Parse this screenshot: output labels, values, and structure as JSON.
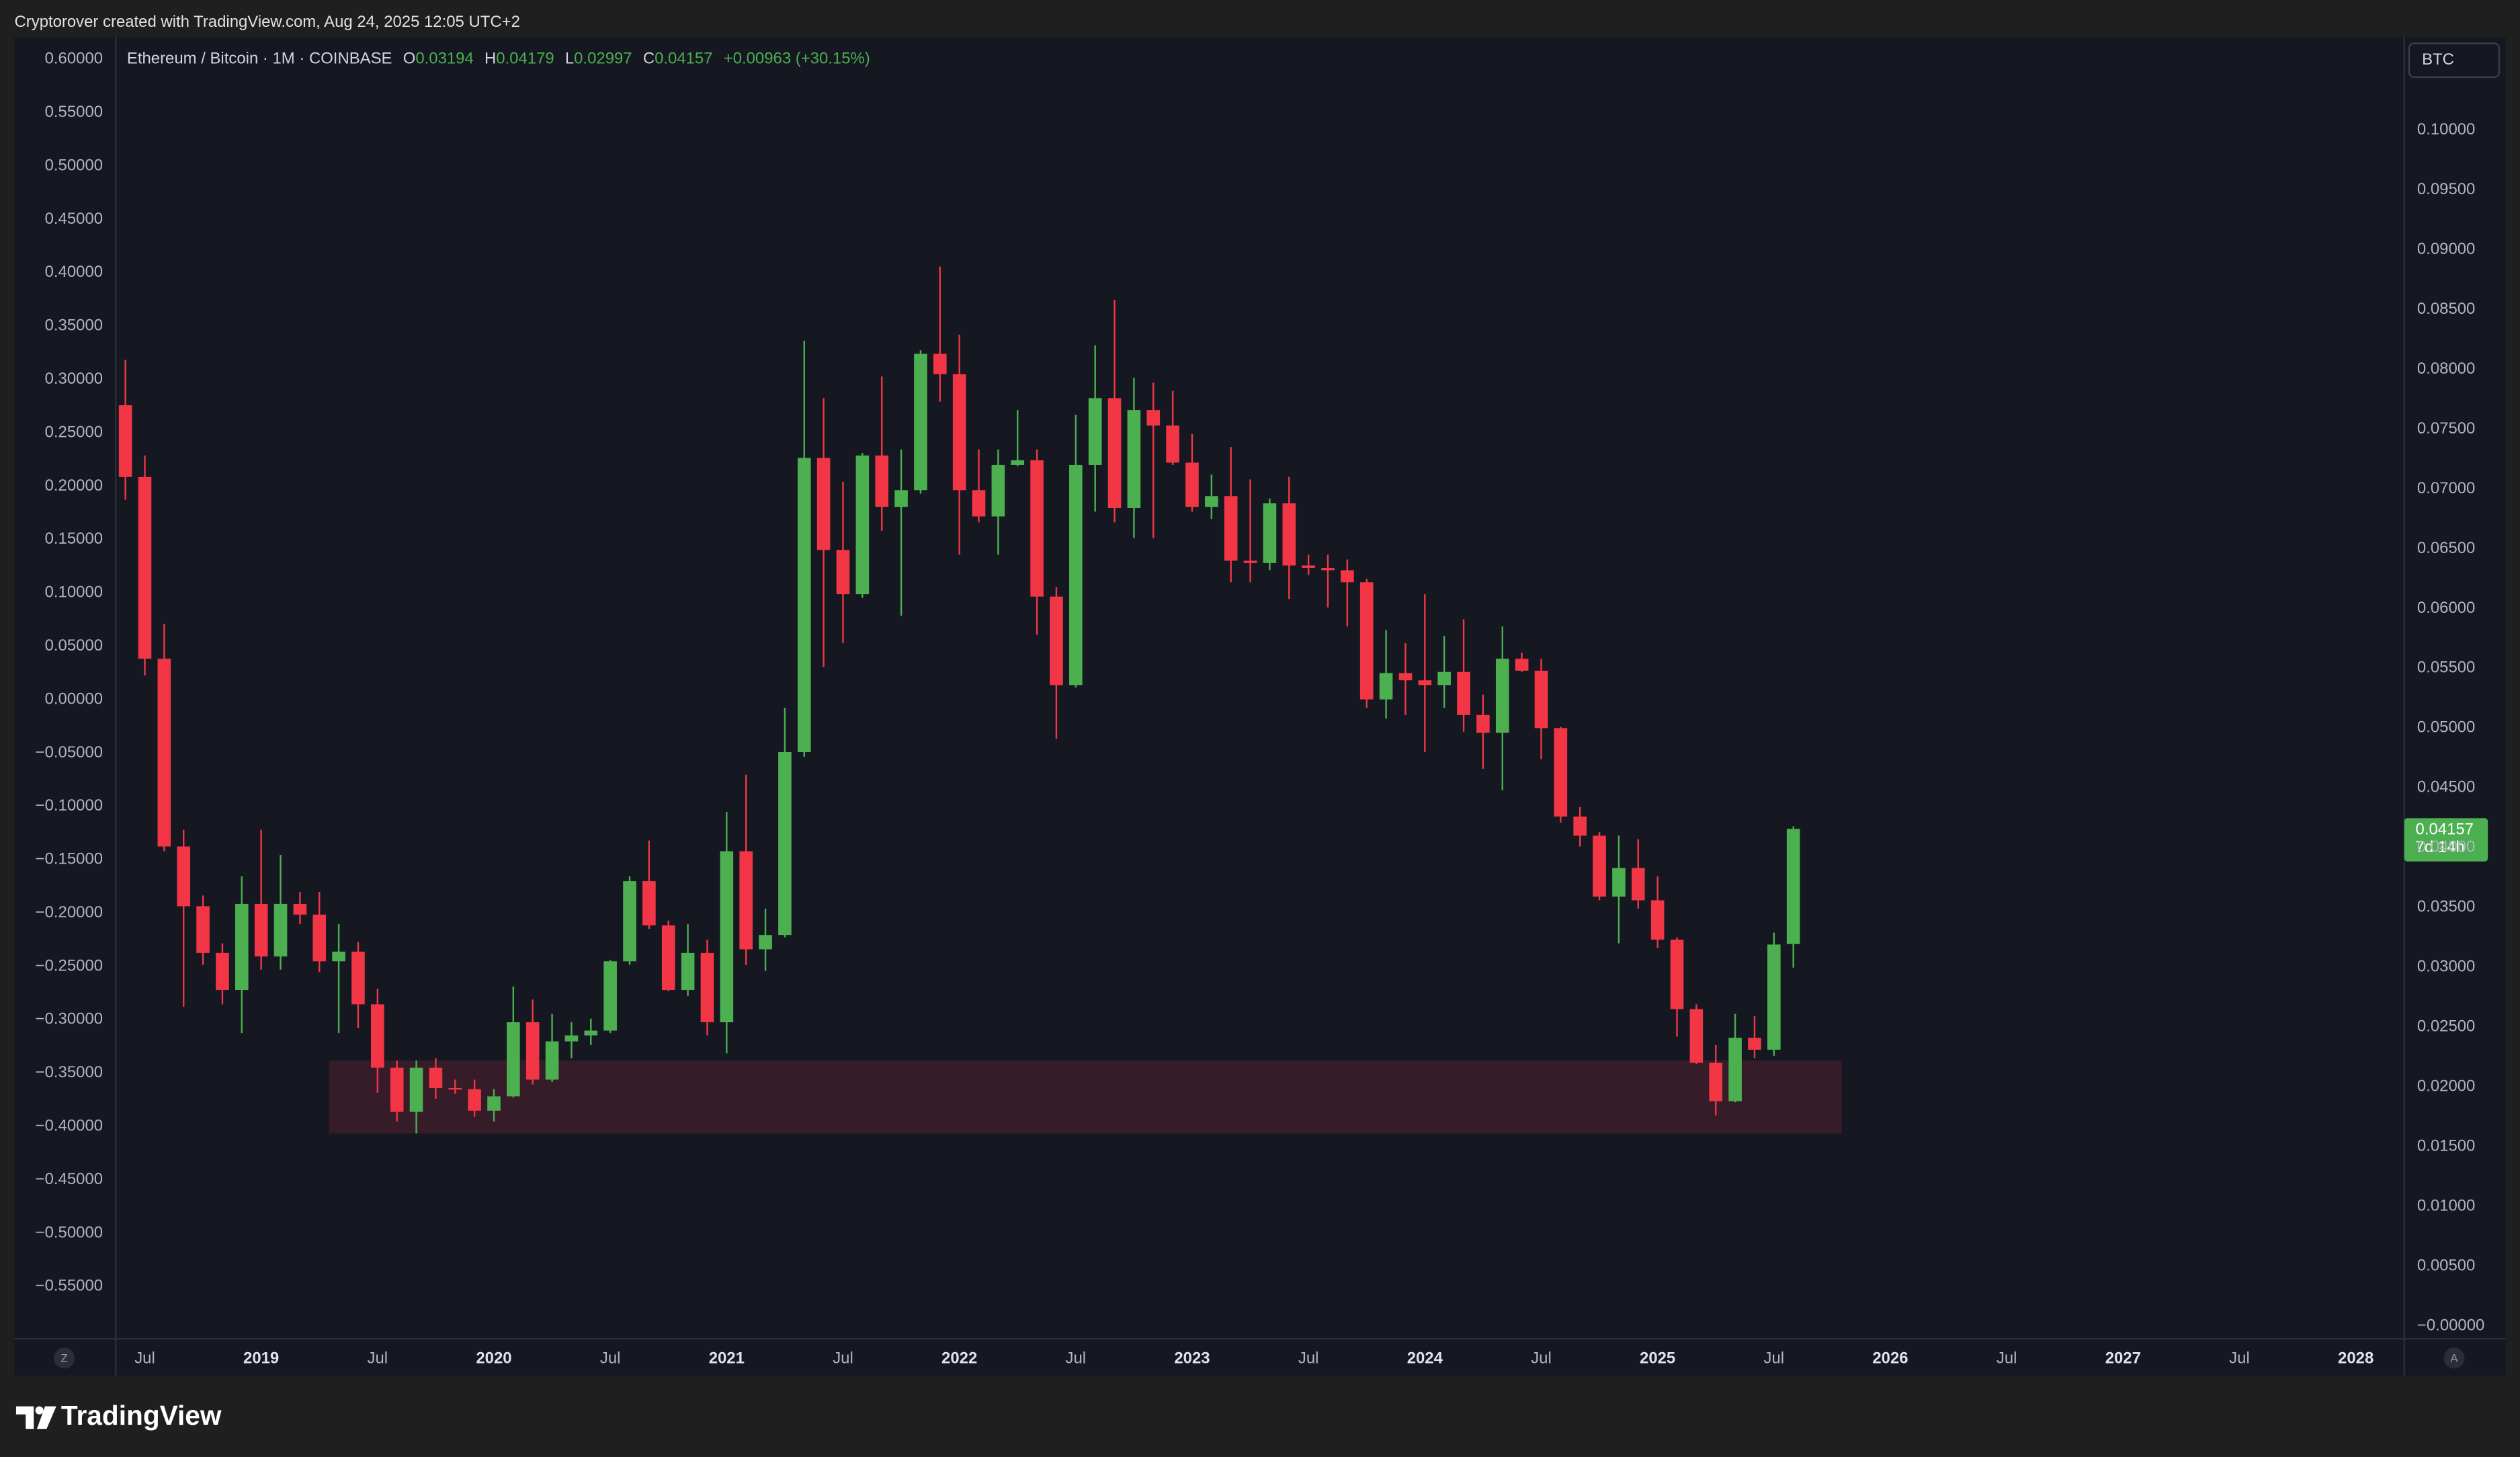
{
  "credit": "Cryptorover created with TradingView.com, Aug 24, 2025 12:05 UTC+2",
  "ui": {
    "currency": "BTC",
    "left_button": "Z",
    "right_button": "A",
    "logo": "TradingView",
    "countdown": "7d 14h"
  },
  "chart_data": {
    "type": "candlestick",
    "symbol": "Ethereum / Bitcoin · 1M · COINBASE",
    "ohlc_letters": [
      "O",
      "H",
      "L",
      "C"
    ],
    "change": "+0.00963 (+30.15%)",
    "up_color": "#4caf50",
    "down_color": "#f23645",
    "x": [
      "2018-06",
      "2018-07",
      "2018-08",
      "2018-09",
      "2018-10",
      "2018-11",
      "2018-12",
      "2019-01",
      "2019-02",
      "2019-03",
      "2019-04",
      "2019-05",
      "2019-06",
      "2019-07",
      "2019-08",
      "2019-09",
      "2019-10",
      "2019-11",
      "2019-12",
      "2020-01",
      "2020-02",
      "2020-03",
      "2020-04",
      "2020-05",
      "2020-06",
      "2020-07",
      "2020-08",
      "2020-09",
      "2020-10",
      "2020-11",
      "2020-12",
      "2021-01",
      "2021-02",
      "2021-03",
      "2021-04",
      "2021-05",
      "2021-06",
      "2021-07",
      "2021-08",
      "2021-09",
      "2021-10",
      "2021-11",
      "2021-12",
      "2022-01",
      "2022-02",
      "2022-03",
      "2022-04",
      "2022-05",
      "2022-06",
      "2022-07",
      "2022-08",
      "2022-09",
      "2022-10",
      "2022-11",
      "2022-12",
      "2023-01",
      "2023-02",
      "2023-03",
      "2023-04",
      "2023-05",
      "2023-06",
      "2023-07",
      "2023-08",
      "2023-09",
      "2023-10",
      "2023-11",
      "2023-12",
      "2024-01",
      "2024-02",
      "2024-03",
      "2024-04",
      "2024-05",
      "2024-06",
      "2024-07",
      "2024-08",
      "2024-09",
      "2024-10",
      "2024-11",
      "2024-12",
      "2025-01",
      "2025-02",
      "2025-03",
      "2025-04",
      "2025-05",
      "2025-06",
      "2025-07",
      "2025-08"
    ],
    "open": [
      0.077,
      0.071,
      0.0558,
      0.0401,
      0.0351,
      0.0312,
      0.0281,
      0.0353,
      0.0309,
      0.0353,
      0.0344,
      0.0305,
      0.0313,
      0.0269,
      0.0216,
      0.0179,
      0.0216,
      0.0199,
      0.0198,
      0.018,
      0.0192,
      0.0254,
      0.0206,
      0.0238,
      0.0243,
      0.0247,
      0.0305,
      0.0372,
      0.0335,
      0.0281,
      0.0312,
      0.0254,
      0.0397,
      0.0315,
      0.0327,
      0.048,
      0.0726,
      0.0649,
      0.0612,
      0.0728,
      0.0685,
      0.0699,
      0.0813,
      0.0796,
      0.0699,
      0.0677,
      0.072,
      0.0724,
      0.061,
      0.0536,
      0.072,
      0.0776,
      0.0684,
      0.0766,
      0.0753,
      0.0722,
      0.0685,
      0.0694,
      0.064,
      0.0638,
      0.0688,
      0.0636,
      0.0634,
      0.0632,
      0.0622,
      0.0524,
      0.0546,
      0.054,
      0.0536,
      0.0547,
      0.0511,
      0.0496,
      0.0558,
      0.0548,
      0.05,
      0.0426,
      0.041,
      0.0359,
      0.0383,
      0.0356,
      0.0323,
      0.0265,
      0.022,
      0.0188,
      0.0241,
      0.0231,
      0.03194
    ],
    "high": [
      0.0808,
      0.0728,
      0.0587,
      0.0415,
      0.036,
      0.032,
      0.0376,
      0.0415,
      0.0394,
      0.0363,
      0.0363,
      0.0336,
      0.0321,
      0.0282,
      0.0222,
      0.0222,
      0.0224,
      0.0206,
      0.0206,
      0.0198,
      0.0284,
      0.0273,
      0.0261,
      0.0254,
      0.0257,
      0.0306,
      0.0376,
      0.0406,
      0.0339,
      0.0336,
      0.0323,
      0.043,
      0.0461,
      0.0349,
      0.0517,
      0.0824,
      0.0776,
      0.0706,
      0.073,
      0.0794,
      0.0733,
      0.0816,
      0.0886,
      0.0829,
      0.0733,
      0.0733,
      0.0766,
      0.0733,
      0.0618,
      0.0762,
      0.082,
      0.0858,
      0.0793,
      0.0789,
      0.0782,
      0.0746,
      0.0712,
      0.0735,
      0.0708,
      0.0692,
      0.071,
      0.0645,
      0.0645,
      0.0641,
      0.0625,
      0.0582,
      0.0571,
      0.0612,
      0.0577,
      0.0591,
      0.0528,
      0.0585,
      0.0563,
      0.0558,
      0.0501,
      0.0434,
      0.0413,
      0.041,
      0.0407,
      0.0376,
      0.0325,
      0.0269,
      0.0235,
      0.0261,
      0.0259,
      0.0329,
      0.04179
    ],
    "low": [
      0.0691,
      0.0544,
      0.0397,
      0.0267,
      0.0302,
      0.0269,
      0.0245,
      0.0298,
      0.0298,
      0.0336,
      0.0296,
      0.0245,
      0.0249,
      0.0195,
      0.0171,
      0.0161,
      0.019,
      0.0194,
      0.0175,
      0.0171,
      0.0191,
      0.0202,
      0.0204,
      0.0224,
      0.0235,
      0.0245,
      0.0302,
      0.0332,
      0.028,
      0.0276,
      0.0243,
      0.0228,
      0.0302,
      0.0297,
      0.0325,
      0.0476,
      0.0551,
      0.0571,
      0.0609,
      0.0665,
      0.0594,
      0.0696,
      0.0773,
      0.0645,
      0.0672,
      0.0645,
      0.0719,
      0.0578,
      0.0491,
      0.0534,
      0.0681,
      0.0672,
      0.0659,
      0.0659,
      0.072,
      0.0681,
      0.0675,
      0.0622,
      0.0622,
      0.0632,
      0.0608,
      0.0628,
      0.0601,
      0.0585,
      0.0517,
      0.0508,
      0.0511,
      0.048,
      0.0517,
      0.0497,
      0.0466,
      0.0448,
      0.0547,
      0.0474,
      0.0421,
      0.0401,
      0.0356,
      0.032,
      0.0349,
      0.0316,
      0.0242,
      0.0219,
      0.0176,
      0.0187,
      0.0224,
      0.0226,
      0.02997
    ],
    "close": [
      0.071,
      0.0558,
      0.0401,
      0.0351,
      0.0312,
      0.0281,
      0.0353,
      0.0309,
      0.0353,
      0.0344,
      0.0305,
      0.0313,
      0.0269,
      0.0216,
      0.0179,
      0.0216,
      0.0199,
      0.0198,
      0.018,
      0.0192,
      0.0254,
      0.0206,
      0.0238,
      0.0243,
      0.0247,
      0.0305,
      0.0372,
      0.0335,
      0.0281,
      0.0312,
      0.0254,
      0.0397,
      0.0315,
      0.0327,
      0.048,
      0.0726,
      0.0649,
      0.0612,
      0.0728,
      0.0685,
      0.0699,
      0.0813,
      0.0796,
      0.0699,
      0.0677,
      0.072,
      0.0724,
      0.061,
      0.0536,
      0.072,
      0.0776,
      0.0684,
      0.0766,
      0.0753,
      0.0722,
      0.0685,
      0.0694,
      0.064,
      0.0638,
      0.0688,
      0.0636,
      0.0634,
      0.0632,
      0.0622,
      0.0524,
      0.0546,
      0.054,
      0.0536,
      0.0547,
      0.0511,
      0.0496,
      0.0558,
      0.0548,
      0.05,
      0.0426,
      0.041,
      0.0359,
      0.0383,
      0.0356,
      0.0323,
      0.0265,
      0.022,
      0.0188,
      0.0241,
      0.0231,
      0.0319,
      0.04157
    ],
    "xlim": [
      "2018-06",
      "2028-03"
    ],
    "xticks": [
      {
        "value": "2018-07",
        "label": "Jul"
      },
      {
        "value": "2019-01",
        "label": "2019"
      },
      {
        "value": "2019-07",
        "label": "Jul"
      },
      {
        "value": "2020-01",
        "label": "2020"
      },
      {
        "value": "2020-07",
        "label": "Jul"
      },
      {
        "value": "2021-01",
        "label": "2021"
      },
      {
        "value": "2021-07",
        "label": "Jul"
      },
      {
        "value": "2022-01",
        "label": "2022"
      },
      {
        "value": "2022-07",
        "label": "Jul"
      },
      {
        "value": "2023-01",
        "label": "2023"
      },
      {
        "value": "2023-07",
        "label": "Jul"
      },
      {
        "value": "2024-01",
        "label": "2024"
      },
      {
        "value": "2024-07",
        "label": "Jul"
      },
      {
        "value": "2025-01",
        "label": "2025"
      },
      {
        "value": "2025-07",
        "label": "Jul"
      },
      {
        "value": "2026-01",
        "label": "2026"
      },
      {
        "value": "2026-07",
        "label": "Jul"
      },
      {
        "value": "2027-01",
        "label": "2027"
      },
      {
        "value": "2027-07",
        "label": "Jul"
      },
      {
        "value": "2028-01",
        "label": "2028"
      }
    ],
    "ylim": [
      -0.00108,
      0.1078
    ],
    "yticks": [
      {
        "value": 0,
        "label": "−0.00000"
      },
      {
        "value": 0.005,
        "label": "0.00500"
      },
      {
        "value": 0.01,
        "label": "0.01000"
      },
      {
        "value": 0.015,
        "label": "0.01500"
      },
      {
        "value": 0.02,
        "label": "0.02000"
      },
      {
        "value": 0.025,
        "label": "0.02500"
      },
      {
        "value": 0.03,
        "label": "0.03000"
      },
      {
        "value": 0.035,
        "label": "0.03500"
      },
      {
        "value": 0.04,
        "label": "0.04000"
      },
      {
        "value": 0.045,
        "label": "0.04500"
      },
      {
        "value": 0.05,
        "label": "0.05000"
      },
      {
        "value": 0.055,
        "label": "0.05500"
      },
      {
        "value": 0.06,
        "label": "0.06000"
      },
      {
        "value": 0.065,
        "label": "0.06500"
      },
      {
        "value": 0.07,
        "label": "0.07000"
      },
      {
        "value": 0.075,
        "label": "0.07500"
      },
      {
        "value": 0.08,
        "label": "0.08000"
      },
      {
        "value": 0.085,
        "label": "0.08500"
      },
      {
        "value": 0.09,
        "label": "0.09000"
      },
      {
        "value": 0.095,
        "label": "0.09500"
      },
      {
        "value": 0.1,
        "label": "0.10000"
      }
    ],
    "y2lim": [
      -0.599,
      0.621
    ],
    "y2ticks": [
      {
        "value": 0.6,
        "label": "0.60000"
      },
      {
        "value": 0.55,
        "label": "0.55000"
      },
      {
        "value": 0.5,
        "label": "0.50000"
      },
      {
        "value": 0.45,
        "label": "0.45000"
      },
      {
        "value": 0.4,
        "label": "0.40000"
      },
      {
        "value": 0.35,
        "label": "0.35000"
      },
      {
        "value": 0.3,
        "label": "0.30000"
      },
      {
        "value": 0.25,
        "label": "0.25000"
      },
      {
        "value": 0.2,
        "label": "0.20000"
      },
      {
        "value": 0.15,
        "label": "0.15000"
      },
      {
        "value": 0.1,
        "label": "0.10000"
      },
      {
        "value": 0.05,
        "label": "0.05000"
      },
      {
        "value": 0,
        "label": "0.00000"
      },
      {
        "value": -0.05,
        "label": "−0.05000"
      },
      {
        "value": -0.1,
        "label": "−0.10000"
      },
      {
        "value": -0.15,
        "label": "−0.15000"
      },
      {
        "value": -0.2,
        "label": "−0.20000"
      },
      {
        "value": -0.25,
        "label": "−0.25000"
      },
      {
        "value": -0.3,
        "label": "−0.30000"
      },
      {
        "value": -0.35,
        "label": "−0.35000"
      },
      {
        "value": -0.4,
        "label": "−0.40000"
      },
      {
        "value": -0.45,
        "label": "−0.45000"
      },
      {
        "value": -0.5,
        "label": "−0.50000"
      },
      {
        "value": -0.55,
        "label": "−0.55000"
      }
    ],
    "zone": {
      "from": "2019-05",
      "to": "2025-10",
      "top": 0.0222,
      "bottom": 0.0161,
      "color": "#3a1c29"
    },
    "grid": false
  }
}
